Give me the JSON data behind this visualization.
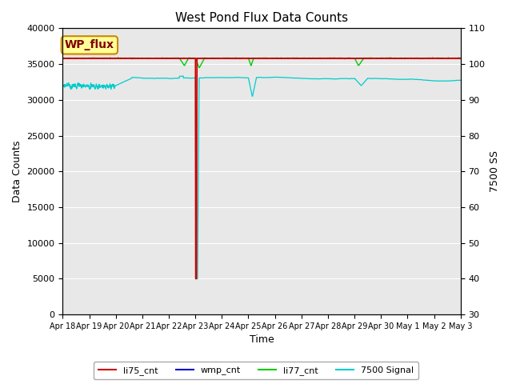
{
  "title": "West Pond Flux Data Counts",
  "xlabel": "Time",
  "ylabel_left": "Data Counts",
  "ylabel_right": "7500 SS",
  "ylim_left": [
    0,
    40000
  ],
  "ylim_right": [
    30,
    110
  ],
  "background_color": "#e8e8e8",
  "annotation_box_text": "WP_flux",
  "annotation_box_color": "#ffff99",
  "annotation_box_border": "#cc8800",
  "annotation_text_color": "#800000",
  "date_labels": [
    "Apr 18",
    "Apr 19",
    "Apr 20",
    "Apr 21",
    "Apr 22",
    "Apr 23",
    "Apr 24",
    "Apr 25",
    "Apr 26",
    "Apr 27",
    "Apr 28",
    "Apr 29",
    "Apr 30",
    "May 1",
    "May 2",
    "May 3"
  ],
  "li75_color": "#cc0000",
  "wmp_color": "#0000cc",
  "li77_color": "#00cc00",
  "signal7500_color": "#00cccc",
  "legend_labels": [
    "li75_cnt",
    "wmp_cnt",
    "li77_cnt",
    "7500 Signal"
  ],
  "grid_color": "#ffffff",
  "yticks_left": [
    0,
    5000,
    10000,
    15000,
    20000,
    25000,
    30000,
    35000,
    40000
  ],
  "yticks_right": [
    30,
    40,
    50,
    60,
    70,
    80,
    90,
    100,
    110
  ]
}
